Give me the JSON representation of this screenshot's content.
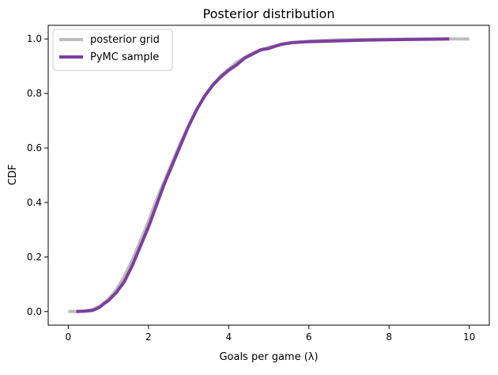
{
  "chart_data": {
    "type": "line",
    "title": "Posterior distribution",
    "xlabel": "Goals per game (λ)",
    "ylabel": "CDF",
    "xlim": [
      -0.5,
      10.5
    ],
    "ylim": [
      -0.05,
      1.05
    ],
    "xticks": [
      0,
      2,
      4,
      6,
      8,
      10
    ],
    "xtick_labels": [
      "0",
      "2",
      "4",
      "6",
      "8",
      "10"
    ],
    "yticks": [
      0.0,
      0.2,
      0.4,
      0.6,
      0.8,
      1.0
    ],
    "ytick_labels": [
      "0.0",
      "0.2",
      "0.4",
      "0.6",
      "0.8",
      "1.0"
    ],
    "grid": false,
    "legend_position": "upper-left",
    "series": [
      {
        "name": "posterior grid",
        "color": "#bdbdbd",
        "x": [
          0,
          0.2,
          0.4,
          0.6,
          0.8,
          1.0,
          1.2,
          1.4,
          1.6,
          1.8,
          2.0,
          2.2,
          2.4,
          2.6,
          2.8,
          3.0,
          3.2,
          3.4,
          3.6,
          3.8,
          4.0,
          4.2,
          4.4,
          4.6,
          4.8,
          5.0,
          5.4,
          5.8,
          6.2,
          6.6,
          7.0,
          7.5,
          8.0,
          8.5,
          9.0,
          9.5,
          10.0
        ],
        "y": [
          0.0,
          0.0,
          0.002,
          0.007,
          0.02,
          0.045,
          0.08,
          0.13,
          0.19,
          0.26,
          0.33,
          0.41,
          0.48,
          0.55,
          0.62,
          0.68,
          0.74,
          0.79,
          0.83,
          0.865,
          0.89,
          0.915,
          0.932,
          0.948,
          0.96,
          0.97,
          0.982,
          0.989,
          0.993,
          0.996,
          0.997,
          0.998,
          0.999,
          0.9995,
          1.0,
          1.0,
          1.0
        ]
      },
      {
        "name": "PyMC sample",
        "color": "#7b3f9e",
        "x": [
          0.2,
          0.4,
          0.6,
          0.7,
          0.8,
          0.9,
          1.0,
          1.2,
          1.4,
          1.6,
          1.8,
          2.0,
          2.2,
          2.4,
          2.6,
          2.8,
          3.0,
          3.2,
          3.4,
          3.6,
          3.8,
          4.0,
          4.2,
          4.4,
          4.6,
          4.8,
          5.0,
          5.3,
          5.6,
          6.0,
          6.5,
          7.0,
          7.5,
          8.0,
          8.5,
          9.0,
          9.5
        ],
        "y": [
          0.0,
          0.001,
          0.004,
          0.01,
          0.018,
          0.03,
          0.04,
          0.07,
          0.11,
          0.17,
          0.24,
          0.31,
          0.39,
          0.47,
          0.54,
          0.61,
          0.68,
          0.74,
          0.79,
          0.83,
          0.86,
          0.885,
          0.905,
          0.93,
          0.945,
          0.96,
          0.965,
          0.98,
          0.987,
          0.99,
          0.992,
          0.994,
          0.996,
          0.997,
          0.998,
          0.999,
          1.0
        ]
      }
    ]
  }
}
